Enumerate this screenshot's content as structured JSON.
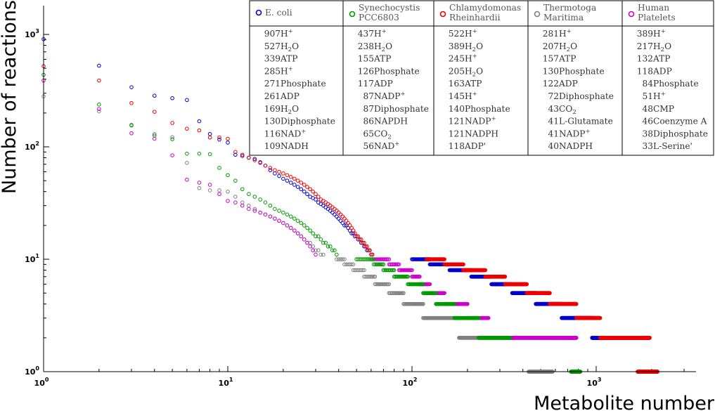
{
  "chart_data": {
    "type": "scatter",
    "xlabel": "Metabolite number",
    "ylabel": "Number of reactions",
    "xscale": "log",
    "yscale": "log",
    "xlim": [
      1,
      3500
    ],
    "ylim": [
      1,
      1500
    ],
    "x_ticks": [
      {
        "value": 1,
        "base": "10",
        "exp": "0"
      },
      {
        "value": 10,
        "base": "10",
        "exp": "1"
      },
      {
        "value": 100,
        "base": "10",
        "exp": "2"
      },
      {
        "value": 1000,
        "base": "10",
        "exp": "3"
      }
    ],
    "y_ticks": [
      {
        "value": 1,
        "base": "10",
        "exp": "0"
      },
      {
        "value": 10,
        "base": "10",
        "exp": "1"
      },
      {
        "value": 100,
        "base": "10",
        "exp": "2"
      },
      {
        "value": 1000,
        "base": "10",
        "exp": "3"
      }
    ],
    "grid": false,
    "legend_position": "top-right",
    "series": [
      {
        "name": "E. coli",
        "name_lines": [
          "E. coli"
        ],
        "color": "#0000cc",
        "top": [
          [
            "907 ",
            "H",
            "+"
          ],
          [
            "527 ",
            "H",
            "2",
            "O"
          ],
          [
            "339 ",
            "ATP"
          ],
          [
            "285 ",
            "H",
            "+"
          ],
          [
            "271 ",
            "Phosphate"
          ],
          [
            "261 ",
            "ADP"
          ],
          [
            "169 ",
            "H",
            "2",
            "O"
          ],
          [
            "130 ",
            "Diphosphate"
          ],
          [
            "116 ",
            "NAD",
            "+"
          ],
          [
            "109 ",
            "NADH"
          ]
        ],
        "head": [
          907,
          527,
          339,
          285,
          271,
          261,
          169,
          130,
          116,
          109,
          85,
          83,
          80,
          78,
          73,
          68,
          62,
          58,
          55,
          52,
          50,
          48,
          46,
          44,
          42,
          40,
          38,
          36,
          35,
          34,
          32,
          31,
          30,
          29,
          28,
          27,
          26,
          25,
          24,
          23,
          22,
          21,
          20,
          20,
          19,
          18,
          17,
          17,
          16,
          16,
          15,
          15,
          14,
          14,
          13,
          13,
          12,
          12,
          12,
          11,
          11
        ],
        "plateaus": [
          [
            10,
            100,
            125
          ],
          [
            9,
            125,
            160
          ],
          [
            8,
            160,
            210
          ],
          [
            7,
            210,
            270
          ],
          [
            6,
            270,
            350
          ],
          [
            5,
            350,
            470
          ],
          [
            4,
            470,
            650
          ],
          [
            3,
            650,
            950
          ],
          [
            2,
            950,
            1470
          ]
        ]
      },
      {
        "name": "Synechocystis PCC6803",
        "name_lines": [
          "Synechocystis",
          "PCC6803"
        ],
        "color": "#009900",
        "top": [
          [
            "437 ",
            "H",
            "+"
          ],
          [
            "238 ",
            "H",
            "2",
            "O"
          ],
          [
            "155 ",
            "ATP"
          ],
          [
            "126 ",
            "Phosphate"
          ],
          [
            "117 ",
            "ADP"
          ],
          [
            "87 ",
            "NADP",
            "+"
          ],
          [
            "87 ",
            "Diphosphate"
          ],
          [
            "86 ",
            "NAPDH"
          ],
          [
            "65 ",
            "CO",
            "2"
          ],
          [
            "56 ",
            "NAD",
            "+"
          ]
        ],
        "head": [
          437,
          238,
          155,
          126,
          117,
          87,
          87,
          86,
          65,
          56,
          50,
          42,
          38,
          36,
          34,
          32,
          30,
          28,
          27,
          26,
          25,
          24,
          23,
          22,
          21,
          20,
          19,
          18,
          17,
          16,
          16,
          15,
          14,
          14,
          13,
          13,
          12,
          12,
          11
        ],
        "plateaus": [
          [
            10,
            50,
            62
          ],
          [
            9,
            62,
            70
          ],
          [
            8,
            70,
            80
          ],
          [
            7,
            80,
            95
          ],
          [
            6,
            95,
            115
          ],
          [
            5,
            115,
            135
          ],
          [
            4,
            135,
            170
          ],
          [
            3,
            170,
            230
          ],
          [
            2,
            230,
            340
          ],
          [
            1,
            730,
            820
          ]
        ]
      },
      {
        "name": "Chlamydomonas Rheinhardii",
        "name_lines": [
          "Chlamydomonas",
          "Rheinhardii"
        ],
        "color": "#ee0000",
        "top": [
          [
            "522 ",
            "H",
            "+"
          ],
          [
            "389 ",
            "H",
            "2",
            "O"
          ],
          [
            "245 ",
            "H",
            "+"
          ],
          [
            "205 ",
            "H",
            "2",
            "O"
          ],
          [
            "163 ",
            "ATP"
          ],
          [
            "145 ",
            "H",
            "+"
          ],
          [
            "140 ",
            "Phosphate"
          ],
          [
            "121 ",
            "NADP",
            "+"
          ],
          [
            "121 ",
            "NADPH"
          ],
          [
            "118 ",
            "ADP'"
          ]
        ],
        "head": [
          522,
          389,
          245,
          205,
          163,
          145,
          140,
          121,
          121,
          118,
          90,
          85,
          80,
          76,
          72,
          68,
          65,
          62,
          60,
          58,
          56,
          54,
          52,
          50,
          48,
          46,
          44,
          42,
          40,
          38,
          36,
          34,
          33,
          32,
          31,
          30,
          29,
          28,
          27,
          26,
          25,
          24,
          23,
          22,
          21,
          20,
          19,
          18,
          17,
          16,
          16,
          15,
          15,
          14,
          14,
          13,
          13,
          12,
          12,
          11,
          11
        ],
        "plateaus": [
          [
            10,
            120,
            150
          ],
          [
            9,
            150,
            190
          ],
          [
            8,
            190,
            250
          ],
          [
            7,
            250,
            320
          ],
          [
            6,
            320,
            420
          ],
          [
            5,
            420,
            560
          ],
          [
            4,
            560,
            780
          ],
          [
            3,
            780,
            1050
          ],
          [
            2,
            1050,
            1950
          ],
          [
            1,
            1680,
            2150
          ]
        ]
      },
      {
        "name": "Thermotoga Maritima",
        "name_lines": [
          "Thermotoga",
          "Maritima"
        ],
        "color": "#808080",
        "top": [
          [
            "281 ",
            "H",
            "+"
          ],
          [
            "207 ",
            "H",
            "2",
            "O"
          ],
          [
            "157 ",
            "ATP"
          ],
          [
            "130 ",
            "Phosphate"
          ],
          [
            "122 ",
            "ADP"
          ],
          [
            "72 ",
            "Diphosphate"
          ],
          [
            "43 ",
            "CO",
            "2"
          ],
          [
            "41 ",
            "L-Glutamate"
          ],
          [
            "41 ",
            "NADP",
            "+"
          ],
          [
            "40 ",
            "NADPH"
          ]
        ],
        "head": [
          281,
          207,
          157,
          130,
          122,
          72,
          43,
          41,
          41,
          40,
          36,
          32,
          30,
          28,
          26,
          25,
          24,
          23,
          22,
          21,
          20,
          19,
          18,
          17,
          16,
          15,
          14,
          14,
          13,
          12,
          12,
          11,
          11
        ],
        "plateaus": [
          [
            10,
            39,
            43
          ],
          [
            9,
            43,
            48
          ],
          [
            8,
            48,
            55
          ],
          [
            7,
            55,
            63
          ],
          [
            6,
            63,
            75
          ],
          [
            5,
            75,
            90
          ],
          [
            4,
            90,
            115
          ],
          [
            3,
            115,
            180
          ],
          [
            2,
            180,
            360
          ],
          [
            1,
            430,
            580
          ]
        ]
      },
      {
        "name": "Human Platelets",
        "name_lines": [
          "Human",
          "Platelets"
        ],
        "color": "#cc00cc",
        "top": [
          [
            "389 ",
            "H",
            "+"
          ],
          [
            "217 ",
            "H",
            "2",
            "O"
          ],
          [
            "132 ",
            "ATP"
          ],
          [
            "118 ",
            "ADP"
          ],
          [
            "84 ",
            "Phosphate"
          ],
          [
            "51 ",
            "H",
            "+"
          ],
          [
            "48 ",
            "CMP"
          ],
          [
            "46 ",
            "Coenzyme A"
          ],
          [
            "38 ",
            "Diphosphate"
          ],
          [
            "33 ",
            "L-Serine'"
          ]
        ],
        "head": [
          389,
          217,
          132,
          118,
          84,
          51,
          48,
          46,
          38,
          33,
          32,
          30,
          28,
          27,
          26,
          25,
          24,
          23,
          22,
          21,
          20,
          19,
          18,
          17,
          16,
          15,
          14,
          13,
          12,
          11
        ],
        "plateaus": [
          [
            10,
            60,
            75
          ],
          [
            9,
            75,
            85
          ],
          [
            8,
            85,
            100
          ],
          [
            7,
            100,
            110
          ],
          [
            6,
            110,
            125
          ],
          [
            5,
            125,
            150
          ],
          [
            4,
            150,
            200
          ],
          [
            3,
            200,
            260
          ],
          [
            2,
            330,
            780
          ]
        ]
      }
    ]
  }
}
